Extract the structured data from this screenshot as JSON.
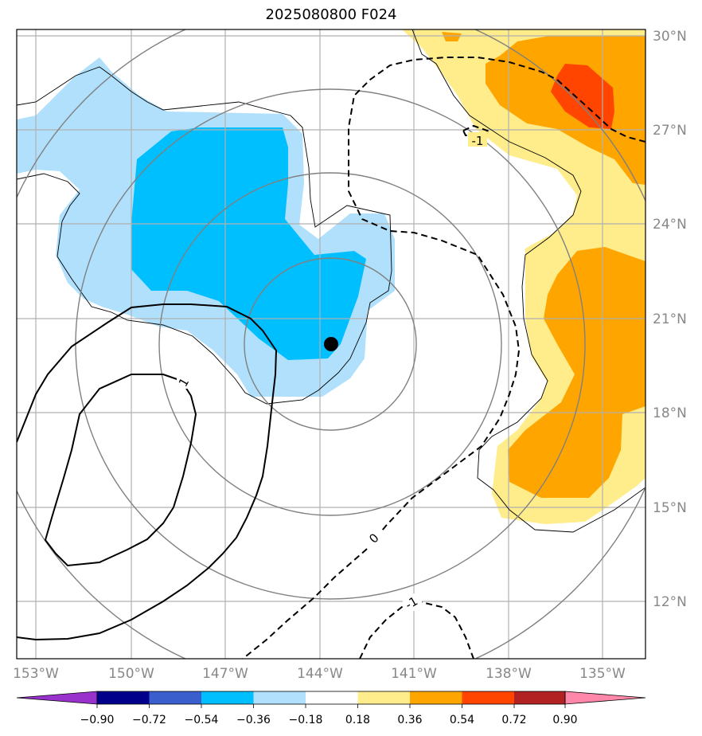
{
  "title": "2025080800 F024",
  "map": {
    "lon_ticks": [
      "153°W",
      "150°W",
      "147°W",
      "144°W",
      "141°W",
      "138°W",
      "135°W"
    ],
    "lat_ticks": [
      "30°N",
      "27°N",
      "24°N",
      "21°N",
      "18°N",
      "15°N",
      "12°N"
    ],
    "center_marker": {
      "lon": -144.3,
      "lat": 20.2
    },
    "contour_labels": [
      "1",
      "-1",
      "0",
      "-1"
    ],
    "fill_colors": {
      "light_blue": "#b0e0fc",
      "deep_sky_blue": "#00bfff",
      "pale_yellow": "#ffec8b",
      "orange": "#ffa500",
      "orange_red": "#ff4500"
    }
  },
  "colorbar": {
    "labels": [
      "−0.90",
      "−0.72",
      "−0.54",
      "−0.36",
      "−0.18",
      "0.18",
      "0.36",
      "0.54",
      "0.72",
      "0.90"
    ],
    "colors": [
      "#9932cc",
      "#00008b",
      "#3a5fcd",
      "#00bfff",
      "#b0e0fc",
      "#ffffff",
      "#ffec8b",
      "#ffa500",
      "#ff4500",
      "#b22222",
      "#ff88aa"
    ]
  }
}
